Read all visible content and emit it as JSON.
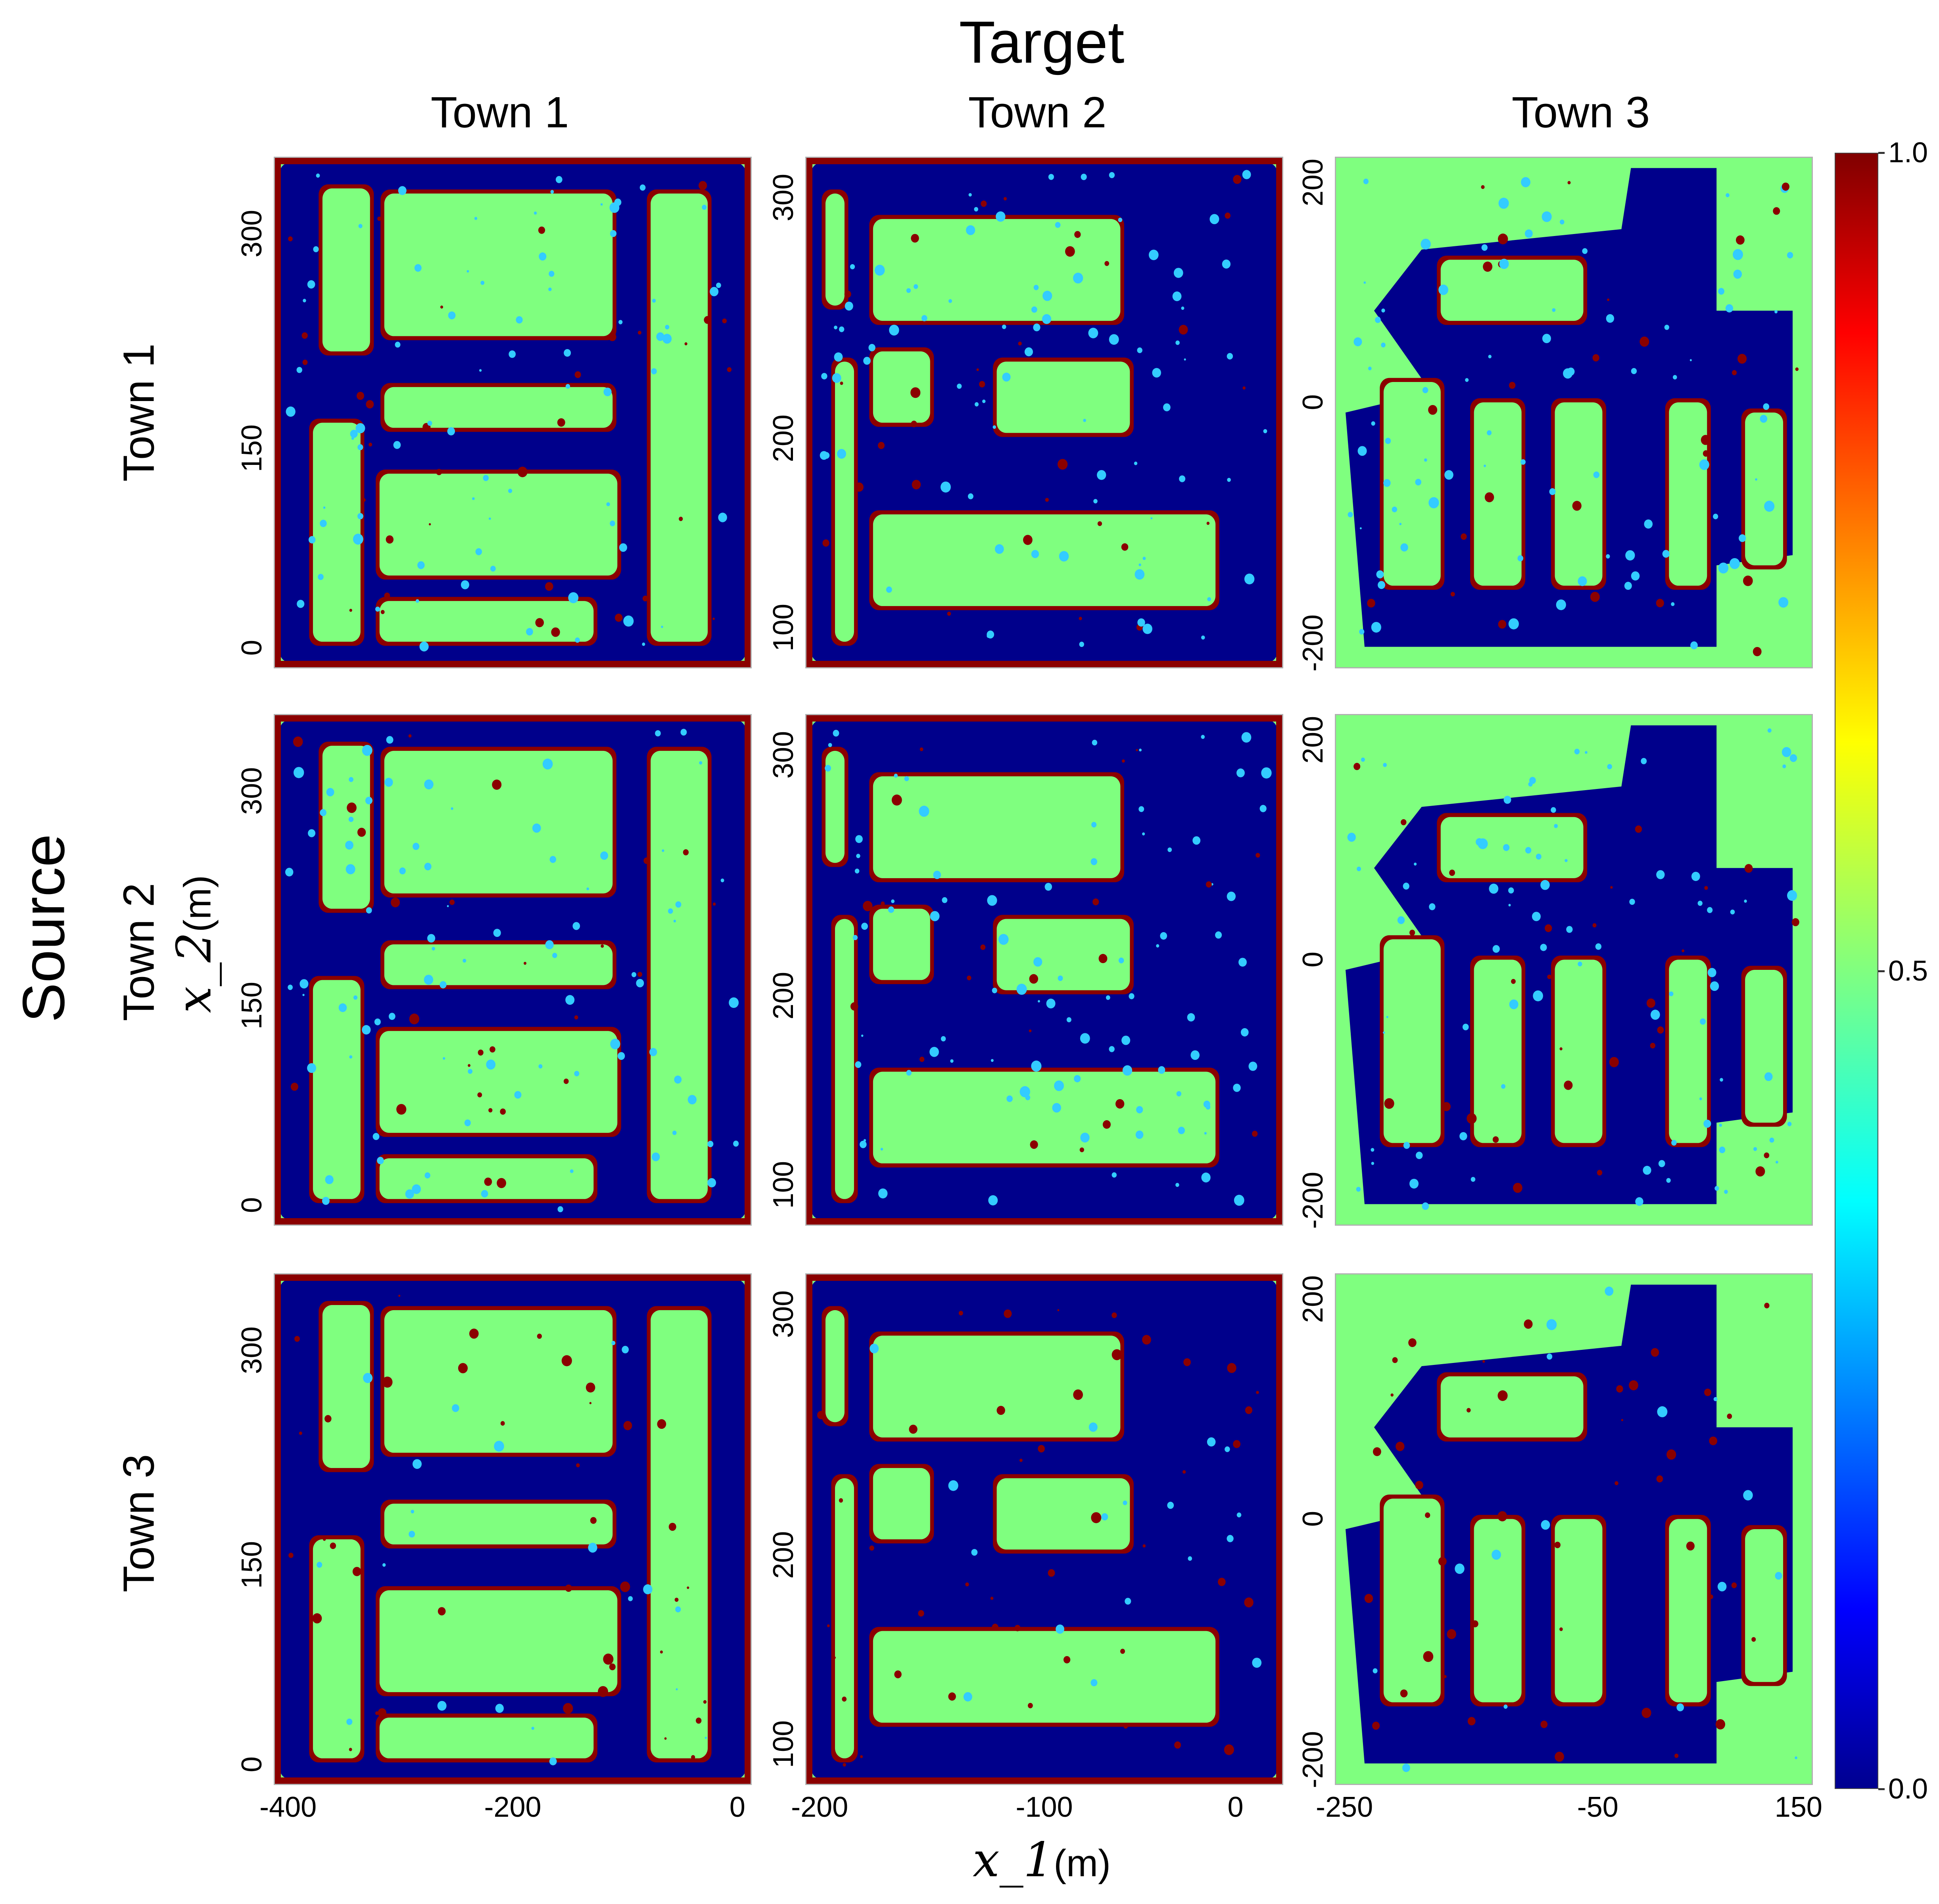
{
  "chart_data": {
    "type": "heatmap",
    "title": "Target",
    "row_group_label": "Source",
    "columns": [
      "Town 1",
      "Town 2",
      "Town 3"
    ],
    "rows": [
      "Town 1",
      "Town 2",
      "Town 3"
    ],
    "xlabel": "x_1",
    "xlabel_unit": "(m)",
    "ylabel": "x_2",
    "ylabel_unit": "(m)",
    "x_ticks": [
      [
        "-400",
        "-200",
        "0"
      ],
      [
        "-200",
        "-100",
        "0"
      ],
      [
        "-250",
        "-50",
        "150"
      ]
    ],
    "y_ticks": [
      [
        "0",
        "150",
        "300"
      ],
      [
        "100",
        "200",
        "300"
      ],
      [
        "-200",
        "0",
        "200"
      ]
    ],
    "colorbar": {
      "min": 0.0,
      "max": 1.0,
      "tick_labels": [
        "0.0",
        "0.5",
        "1.0"
      ],
      "colormap": "jet",
      "colors": [
        "#00008f",
        "#0000ff",
        "#00ffff",
        "#80ff80",
        "#ffff00",
        "#ff0000",
        "#800000"
      ]
    },
    "colors": {
      "background": "#7fff7f",
      "low": "#00008b",
      "high": "#8b0000",
      "mid": "#33ccff"
    }
  }
}
